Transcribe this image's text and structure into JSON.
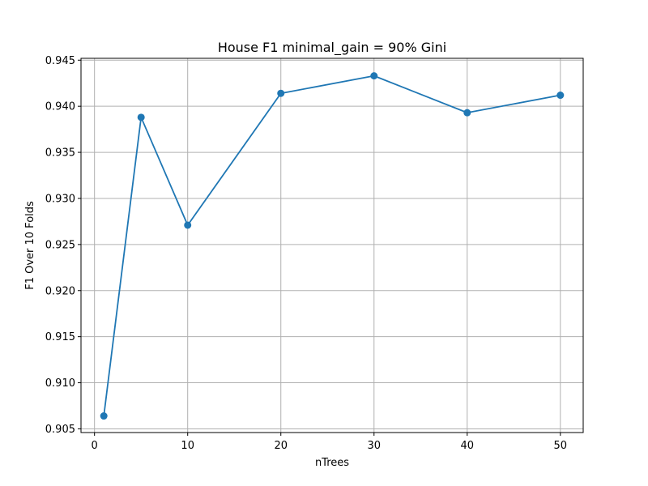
{
  "chart_data": {
    "type": "line",
    "title": "House F1 minimal_gain = 90% Gini",
    "xlabel": "nTrees",
    "ylabel": "F1 Over 10 Folds",
    "x": [
      1,
      5,
      10,
      20,
      30,
      40,
      50
    ],
    "series": [
      {
        "values": [
          0.9064,
          0.9388,
          0.9271,
          0.9414,
          0.9433,
          0.9393,
          0.9412
        ],
        "color": "#1f77b4",
        "marker": "circle"
      }
    ],
    "xlim": [
      -1.45,
      52.45
    ],
    "ylim": [
      0.9046,
      0.9452
    ],
    "xticks": [
      0,
      10,
      20,
      30,
      40,
      50
    ],
    "xtick_labels": [
      "0",
      "10",
      "20",
      "30",
      "40",
      "50"
    ],
    "yticks": [
      0.905,
      0.91,
      0.915,
      0.92,
      0.925,
      0.93,
      0.935,
      0.94,
      0.945
    ],
    "ytick_labels": [
      "0.905",
      "0.910",
      "0.915",
      "0.920",
      "0.925",
      "0.930",
      "0.935",
      "0.940",
      "0.945"
    ],
    "grid": true,
    "legend": false
  }
}
